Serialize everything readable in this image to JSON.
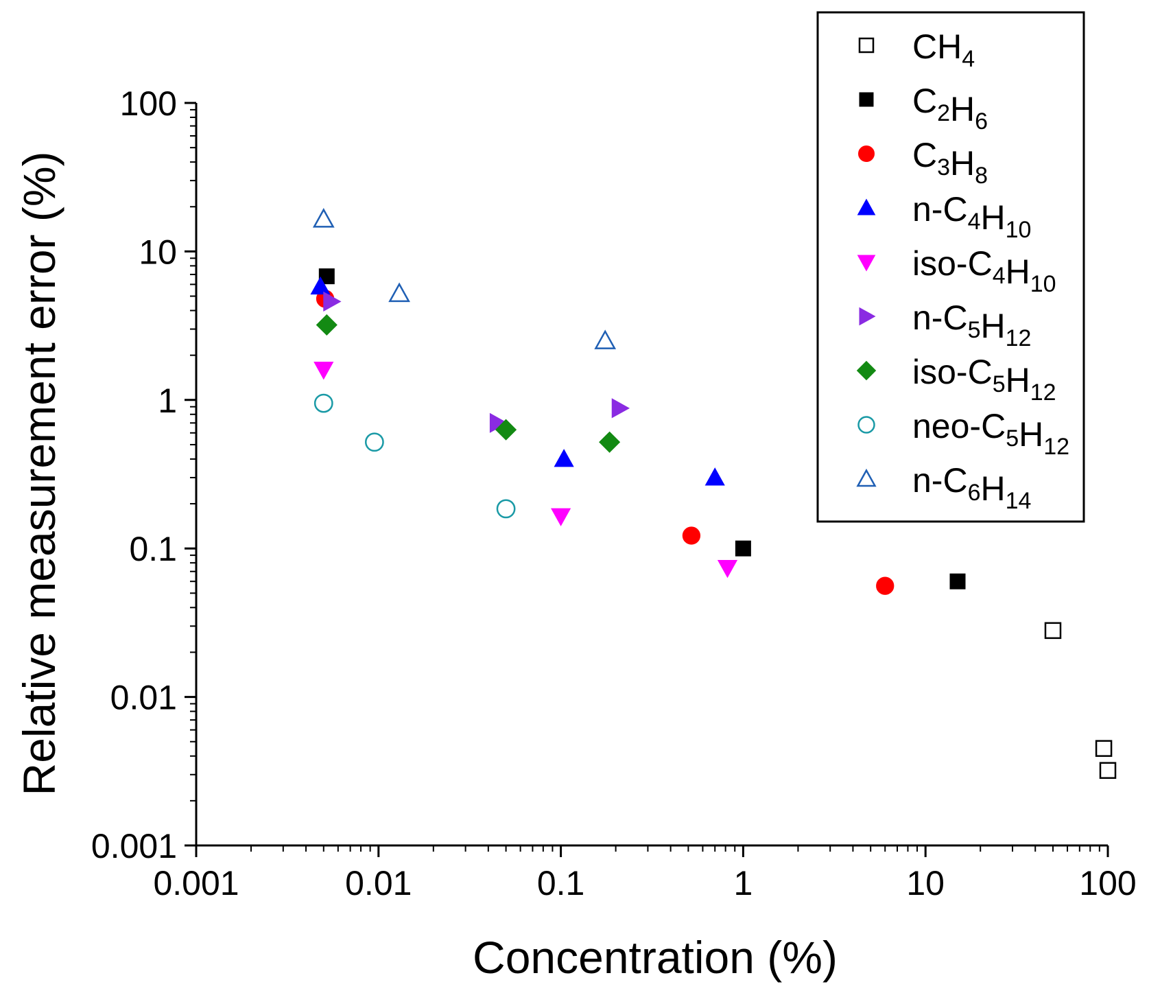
{
  "chart_data": {
    "type": "scatter",
    "xlabel": "Concentration (%)",
    "ylabel": "Relative measurement error (%)",
    "xscale": "log",
    "yscale": "log",
    "xlim": [
      0.001,
      100
    ],
    "ylim": [
      0.001,
      100
    ],
    "x_ticks": [
      {
        "value": 0.001,
        "label": "0.001"
      },
      {
        "value": 0.01,
        "label": "0.01"
      },
      {
        "value": 0.1,
        "label": "0.1"
      },
      {
        "value": 1,
        "label": "1"
      },
      {
        "value": 10,
        "label": "10"
      },
      {
        "value": 100,
        "label": "100"
      }
    ],
    "y_ticks": [
      {
        "value": 0.001,
        "label": "0.001"
      },
      {
        "value": 0.01,
        "label": "0.01"
      },
      {
        "value": 0.1,
        "label": "0.1"
      },
      {
        "value": 1,
        "label": "1"
      },
      {
        "value": 10,
        "label": "10"
      },
      {
        "value": 100,
        "label": "100"
      }
    ],
    "legend_position": "top-right",
    "series": [
      {
        "name": "CH4",
        "label": {
          "prefix": "",
          "parts": [
            [
              "CH",
              "4"
            ]
          ]
        },
        "marker": "square",
        "filled": false,
        "color": "#000000",
        "points": [
          [
            50,
            0.028
          ],
          [
            95,
            0.0045
          ],
          [
            100,
            0.0032
          ]
        ]
      },
      {
        "name": "C2H6",
        "label": {
          "prefix": "",
          "parts": [
            [
              "C",
              "2"
            ],
            [
              "H",
              "6"
            ]
          ]
        },
        "marker": "square",
        "filled": true,
        "color": "#000000",
        "points": [
          [
            0.0052,
            6.8
          ],
          [
            1.0,
            0.1
          ],
          [
            15,
            0.06
          ]
        ]
      },
      {
        "name": "C3H8",
        "label": {
          "prefix": "",
          "parts": [
            [
              "C",
              "3"
            ],
            [
              "H",
              "8"
            ]
          ]
        },
        "marker": "circle",
        "filled": true,
        "color": "#ff0000",
        "points": [
          [
            0.0051,
            4.8
          ],
          [
            0.52,
            0.122
          ],
          [
            6.0,
            0.056
          ]
        ]
      },
      {
        "name": "n-C4H10",
        "label": {
          "prefix": "n-",
          "parts": [
            [
              "C",
              "4"
            ],
            [
              "H",
              "10"
            ]
          ]
        },
        "marker": "triangle-up",
        "filled": true,
        "color": "#0000ff",
        "points": [
          [
            0.0048,
            5.8
          ],
          [
            0.104,
            0.4
          ],
          [
            0.7,
            0.3
          ]
        ]
      },
      {
        "name": "iso-C4H10",
        "label": {
          "prefix": "iso-",
          "parts": [
            [
              "C",
              "4"
            ],
            [
              "H",
              "10"
            ]
          ]
        },
        "marker": "triangle-down",
        "filled": true,
        "color": "#ff00ff",
        "points": [
          [
            0.005,
            1.6
          ],
          [
            0.1,
            0.165
          ],
          [
            0.82,
            0.074
          ]
        ]
      },
      {
        "name": "n-C5H12",
        "label": {
          "prefix": "n-",
          "parts": [
            [
              "C",
              "5"
            ],
            [
              "H",
              "12"
            ]
          ]
        },
        "marker": "triangle-right",
        "filled": true,
        "color": "#8a2be2",
        "points": [
          [
            0.0055,
            4.6
          ],
          [
            0.045,
            0.7
          ],
          [
            0.21,
            0.88
          ]
        ]
      },
      {
        "name": "iso-C5H12",
        "label": {
          "prefix": "iso-",
          "parts": [
            [
              "C",
              "5"
            ],
            [
              "H",
              "12"
            ]
          ]
        },
        "marker": "diamond",
        "filled": true,
        "color": "#138a13",
        "points": [
          [
            0.0052,
            3.2
          ],
          [
            0.05,
            0.63
          ],
          [
            0.185,
            0.52
          ]
        ]
      },
      {
        "name": "neo-C5H12",
        "label": {
          "prefix": "neo-",
          "parts": [
            [
              "C",
              "5"
            ],
            [
              "H",
              "12"
            ]
          ]
        },
        "marker": "circle",
        "filled": false,
        "color": "#1a9aa6",
        "points": [
          [
            0.005,
            0.95
          ],
          [
            0.0095,
            0.52
          ],
          [
            0.05,
            0.185
          ]
        ]
      },
      {
        "name": "n-C6H14",
        "label": {
          "prefix": "n-",
          "parts": [
            [
              "C",
              "6"
            ],
            [
              "H",
              "14"
            ]
          ]
        },
        "marker": "triangle-up",
        "filled": false,
        "color": "#1f5fb4",
        "points": [
          [
            0.005,
            16.5
          ],
          [
            0.013,
            5.2
          ],
          [
            0.175,
            2.5
          ]
        ]
      }
    ]
  }
}
